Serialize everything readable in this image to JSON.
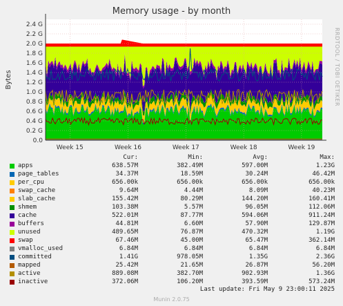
{
  "title": "Memory usage - by month",
  "side_label": "RRDTOOL / TOBI OETIKER",
  "legend_headers": {
    "cur": "Cur:",
    "min": "Min:",
    "avg": "Avg:",
    "max": "Max:"
  },
  "footer": {
    "last_update": "Last update: Fri May  9 23:00:11 2025",
    "version": "Munin 2.0.75"
  },
  "chart_data": {
    "type": "area",
    "ylabel": "Bytes",
    "y_unit": "bytes (10^9 = G)",
    "ylim": [
      0,
      2.5
    ],
    "y_ticks": [
      "0.0",
      "0.2 G",
      "0.4 G",
      "0.6 G",
      "0.8 G",
      "1.0 G",
      "1.2 G",
      "1.4 G",
      "1.6 G",
      "1.8 G",
      "2.0 G",
      "2.2 G",
      "2.4 G"
    ],
    "x_ticks": [
      "Week 15",
      "Week 16",
      "Week 17",
      "Week 18",
      "Week 19"
    ],
    "grid": true,
    "stacked_series": [
      {
        "name": "apps",
        "color": "#00cc00",
        "cur": "638.57M",
        "min": "382.49M",
        "avg": "597.00M",
        "max": "1.23G"
      },
      {
        "name": "page_tables",
        "color": "#0066b3",
        "cur": "34.37M",
        "min": "18.59M",
        "avg": "30.24M",
        "max": "46.42M"
      },
      {
        "name": "per_cpu",
        "color": "#ffcc00",
        "cur": "656.00k",
        "min": "656.00k",
        "avg": "656.00k",
        "max": "656.00k"
      },
      {
        "name": "swap_cache",
        "color": "#ff8000",
        "cur": "9.64M",
        "min": "4.44M",
        "avg": "8.09M",
        "max": "40.23M"
      },
      {
        "name": "slab_cache",
        "color": "#ffcc00",
        "cur": "155.42M",
        "min": "80.29M",
        "avg": "144.20M",
        "max": "160.41M"
      },
      {
        "name": "shmem",
        "color": "#008f00",
        "cur": "103.38M",
        "min": "5.57M",
        "avg": "96.05M",
        "max": "112.06M"
      },
      {
        "name": "cache",
        "color": "#330099",
        "cur": "522.01M",
        "min": "87.77M",
        "avg": "594.06M",
        "max": "911.24M"
      },
      {
        "name": "buffers",
        "color": "#990099",
        "cur": "44.81M",
        "min": "6.60M",
        "avg": "57.90M",
        "max": "129.87M"
      },
      {
        "name": "unused",
        "color": "#ccff00",
        "cur": "489.65M",
        "min": "76.87M",
        "avg": "470.32M",
        "max": "1.19G"
      },
      {
        "name": "swap",
        "color": "#ff0000",
        "cur": "67.46M",
        "min": "45.00M",
        "avg": "65.47M",
        "max": "362.14M"
      }
    ],
    "line_series": [
      {
        "name": "vmalloc_used",
        "color": "#808080",
        "cur": "6.84M",
        "min": "6.84M",
        "avg": "6.84M",
        "max": "6.84M"
      },
      {
        "name": "committed",
        "color": "#004d80",
        "cur": "1.41G",
        "min": "978.05M",
        "avg": "1.35G",
        "max": "2.36G"
      },
      {
        "name": "mapped",
        "color": "#b35a00",
        "cur": "25.42M",
        "min": "21.65M",
        "avg": "26.87M",
        "max": "56.20M"
      },
      {
        "name": "active",
        "color": "#b38f00",
        "cur": "889.08M",
        "min": "382.70M",
        "avg": "902.93M",
        "max": "1.36G"
      },
      {
        "name": "inactive",
        "color": "#990000",
        "cur": "372.06M",
        "min": "106.20M",
        "avg": "393.59M",
        "max": "573.24M"
      }
    ]
  }
}
